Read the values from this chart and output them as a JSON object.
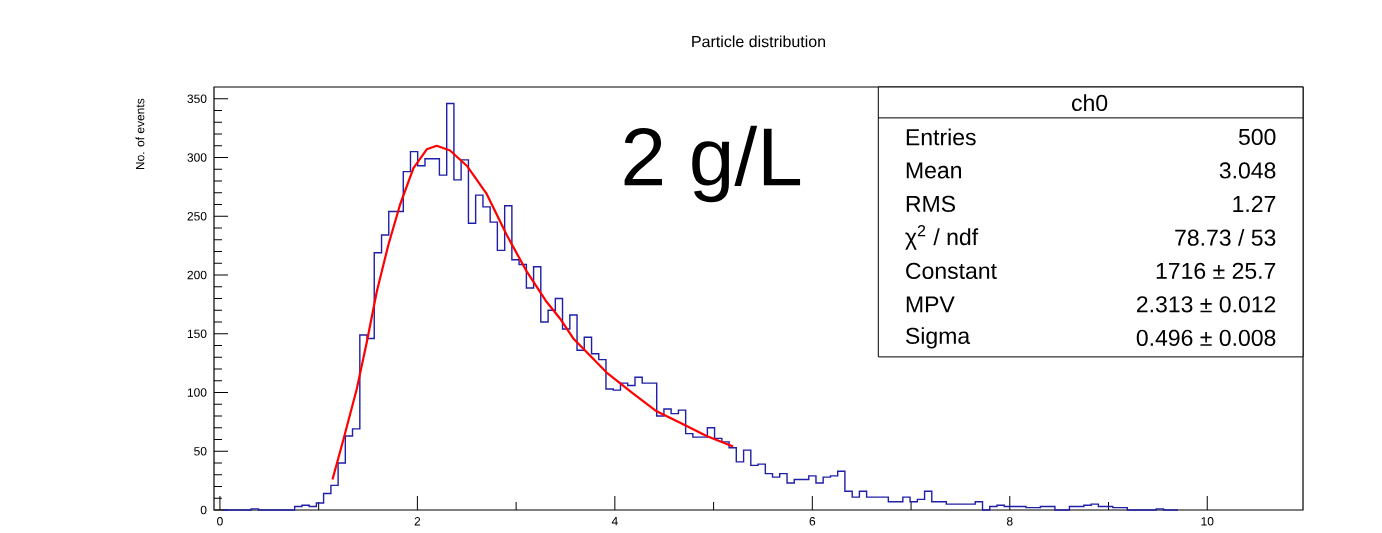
{
  "chart_data": {
    "type": "histogram",
    "title": "Particle distribution",
    "ylabel": "No. of events",
    "xlim": [
      -0.06,
      10.97
    ],
    "ylim": [
      0,
      360
    ],
    "xticks": [
      0,
      2,
      4,
      6,
      8,
      10
    ],
    "yticks": [
      0,
      50,
      100,
      150,
      200,
      250,
      300,
      350
    ],
    "grid": false,
    "annotations": [
      "2 g/L",
      "ch0",
      "Entries",
      "500",
      "Mean",
      "3.048",
      "RMS",
      "1.27",
      "χ$^{2}$ / ndf",
      "78.73 / 53",
      "Constant",
      "1716 ± 25.7",
      "MPV",
      "2.313 ± 0.012",
      "Sigma",
      "0.496 ± 0.008"
    ],
    "series": [
      {
        "color": "#1f1fa8",
        "bins": [
          0.024,
          0.097,
          0.171,
          0.244,
          0.317,
          0.391,
          0.464,
          0.537,
          0.611,
          0.684,
          0.757,
          0.831,
          0.904,
          0.977,
          1.05,
          1.124,
          1.197,
          1.27,
          1.343,
          1.417,
          1.49,
          1.563,
          1.637,
          1.71,
          1.783,
          1.857,
          1.93,
          2.003,
          2.077,
          2.15,
          2.223,
          2.297,
          2.37,
          2.443,
          2.517,
          2.59,
          2.664,
          2.737,
          2.81,
          2.884,
          2.957,
          3.03,
          3.104,
          3.177,
          3.25,
          3.324,
          3.397,
          3.47,
          3.544,
          3.617,
          3.69,
          3.764,
          3.837,
          3.91,
          3.984,
          4.057,
          4.13,
          4.204,
          4.277,
          4.35,
          4.424,
          4.497,
          4.57,
          4.644,
          4.717,
          4.79,
          4.864,
          4.937,
          5.01,
          5.084,
          5.157,
          5.23,
          5.304,
          5.377,
          5.45,
          5.524,
          5.597,
          5.67,
          5.744,
          5.817,
          5.89,
          5.964,
          6.037,
          6.11,
          6.184,
          6.257,
          6.33,
          6.404,
          6.477,
          6.55,
          6.624,
          6.697,
          6.77,
          6.844,
          6.917,
          6.99,
          7.064,
          7.137,
          7.21,
          7.284,
          7.357,
          7.43,
          7.504,
          7.577,
          7.65,
          7.724,
          7.797,
          7.87,
          7.944,
          8.017,
          8.09,
          8.164,
          8.237,
          8.31,
          8.384,
          8.457,
          8.53,
          8.604,
          8.677,
          8.75,
          8.824,
          8.897,
          8.97,
          9.044,
          9.117,
          9.19,
          9.264,
          9.337,
          9.41,
          9.484,
          9.557,
          9.63,
          9.704
        ],
        "values": [
          0,
          0,
          0,
          0,
          1,
          0,
          0,
          0,
          0,
          0,
          3,
          4,
          3,
          6,
          14,
          21,
          40,
          63,
          69,
          149,
          146,
          219,
          234,
          254,
          254,
          288,
          305,
          293,
          299,
          299,
          285,
          346,
          281,
          298,
          244,
          268,
          258,
          245,
          221,
          259,
          213,
          209,
          189,
          207,
          160,
          170,
          180,
          154,
          166,
          136,
          147,
          133,
          128,
          103,
          102,
          108,
          106,
          113,
          108,
          108,
          80,
          86,
          82,
          85,
          65,
          62,
          62,
          70,
          61,
          58,
          53,
          41,
          51,
          38,
          39,
          31,
          28,
          31,
          23,
          26,
          26,
          29,
          23,
          28,
          29,
          33,
          16,
          11,
          16,
          11,
          11,
          11,
          7,
          7,
          11,
          7,
          9,
          16,
          7,
          7,
          5,
          5,
          5,
          5,
          7,
          0,
          3,
          4,
          3,
          3,
          3,
          2,
          2,
          3,
          3,
          0,
          0,
          3,
          3,
          4,
          5,
          3,
          3,
          2,
          2,
          0,
          0,
          0,
          0,
          1,
          0,
          0
        ]
      },
      {
        "type": "line",
        "color": "#ff0000",
        "x": [
          1.14,
          1.251,
          1.386,
          1.488,
          1.589,
          1.707,
          1.825,
          1.96,
          2.095,
          2.196,
          2.331,
          2.5,
          2.702,
          2.905,
          3.107,
          3.31,
          3.444,
          3.579,
          3.917,
          4.186,
          4.423,
          4.692,
          4.929,
          5.198
        ],
        "values": [
          26,
          60,
          103,
          143,
          186,
          226,
          260,
          291,
          307,
          310,
          306,
          293,
          269,
          234,
          203,
          177,
          163,
          146,
          117,
          99,
          84,
          73,
          63,
          54
        ]
      }
    ]
  }
}
